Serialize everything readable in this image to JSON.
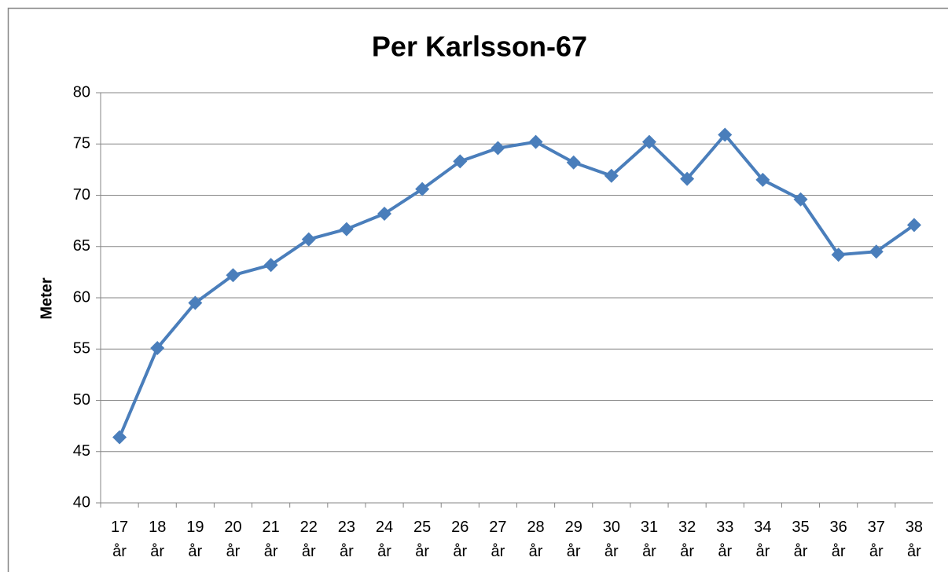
{
  "chart_data": {
    "type": "line",
    "title": "Per Karlsson-67",
    "y_label": "Meter",
    "categories": [
      "17 år",
      "18 år",
      "19 år",
      "20 år",
      "21 år",
      "22 år",
      "23 år",
      "24 år",
      "25 år",
      "26 år",
      "27 år",
      "28 år",
      "29 år",
      "30 år",
      "31 år",
      "32 år",
      "33 år",
      "34 år",
      "35 år",
      "36 år",
      "37 år",
      "38 år"
    ],
    "values": [
      46.4,
      55.1,
      59.5,
      62.2,
      63.2,
      65.7,
      66.7,
      68.2,
      70.6,
      73.3,
      74.6,
      75.2,
      73.2,
      71.9,
      75.2,
      71.6,
      75.9,
      71.5,
      69.6,
      64.2,
      64.5,
      67.1
    ],
    "color": "#4a7ebb",
    "ylim": [
      40,
      80
    ],
    "yticks": [
      40,
      45,
      50,
      55,
      60,
      65,
      70,
      75,
      80
    ],
    "grid": true
  }
}
